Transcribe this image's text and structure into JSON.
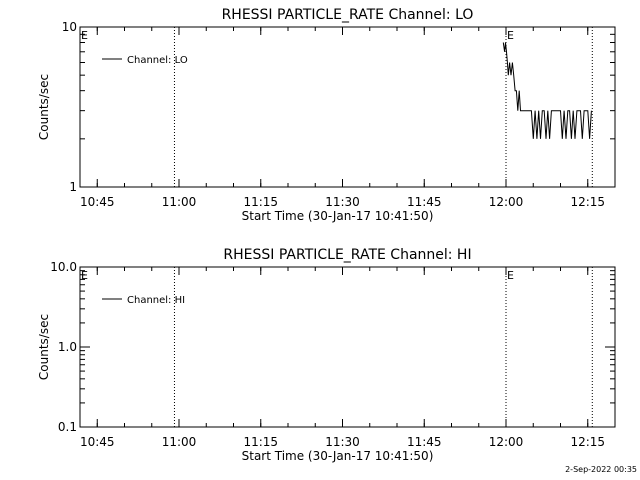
{
  "footer": {
    "timestamp": "2-Sep-2022 00:35"
  },
  "chart_data": [
    {
      "type": "line",
      "title": "RHESSI PARTICLE_RATE Channel: LO",
      "xlabel": "Start Time (30-Jan-17 10:41:50)",
      "ylabel": "Counts/sec",
      "yscale": "log",
      "ylim": [
        1,
        10
      ],
      "xlim": [
        "10:41:50",
        "12:20:00"
      ],
      "x_ticks": [
        "10:45",
        "11:00",
        "11:15",
        "11:30",
        "11:45",
        "12:00",
        "12:15"
      ],
      "y_ticks": [
        "1",
        "10"
      ],
      "legend": {
        "position": "top-left",
        "entries": [
          "Channel: LO"
        ]
      },
      "event_markers": [
        {
          "time": "10:41:50",
          "label": "E",
          "line": false
        },
        {
          "time": "10:59:10",
          "label": "",
          "line": true
        },
        {
          "time": "12:00:00",
          "label": "E",
          "line": true
        },
        {
          "time": "12:15:50",
          "label": "",
          "line": true
        }
      ],
      "series": [
        {
          "name": "Channel: LO",
          "x": [
            "11:59:30",
            "11:59:45",
            "11:59:55",
            "12:00:05",
            "12:00:15",
            "12:00:25",
            "12:00:40",
            "12:00:55",
            "12:01:10",
            "12:01:25",
            "12:01:40",
            "12:01:55",
            "12:02:10",
            "12:02:25",
            "12:02:40",
            "12:03:00",
            "12:03:20",
            "12:03:40",
            "12:04:00",
            "12:04:20",
            "12:04:40",
            "12:05:00",
            "12:05:20",
            "12:05:40",
            "12:06:00",
            "12:06:20",
            "12:06:40",
            "12:07:00",
            "12:07:20",
            "12:07:40",
            "12:08:00",
            "12:08:20",
            "12:08:40",
            "12:09:00",
            "12:09:20",
            "12:09:40",
            "12:10:00",
            "12:10:20",
            "12:10:40",
            "12:11:00",
            "12:11:20",
            "12:11:40",
            "12:12:00",
            "12:12:20",
            "12:12:40",
            "12:13:00",
            "12:13:20",
            "12:13:40",
            "12:14:00",
            "12:14:20",
            "12:14:40",
            "12:15:00",
            "12:15:20",
            "12:15:40"
          ],
          "values": [
            8,
            7,
            8,
            7,
            6,
            5,
            6,
            5,
            6,
            5,
            4,
            4,
            3,
            4,
            3,
            3,
            3,
            3,
            3,
            3,
            3,
            2,
            3,
            2,
            3,
            2,
            3,
            3,
            2,
            3,
            2,
            3,
            3,
            3,
            3,
            3,
            3,
            2,
            3,
            2,
            3,
            3,
            2,
            3,
            2,
            3,
            3,
            3,
            2,
            3,
            3,
            3,
            2,
            3
          ]
        }
      ]
    },
    {
      "type": "line",
      "title": "RHESSI PARTICLE_RATE Channel: HI",
      "xlabel": "Start Time (30-Jan-17 10:41:50)",
      "ylabel": "Counts/sec",
      "yscale": "log",
      "ylim": [
        0.1,
        10
      ],
      "xlim": [
        "10:41:50",
        "12:20:00"
      ],
      "x_ticks": [
        "10:45",
        "11:00",
        "11:15",
        "11:30",
        "11:45",
        "12:00",
        "12:15"
      ],
      "y_ticks": [
        "0.1",
        "1.0",
        "10.0"
      ],
      "legend": {
        "position": "top-left",
        "entries": [
          "Channel: HI"
        ]
      },
      "event_markers": [
        {
          "time": "10:41:50",
          "label": "E",
          "line": false
        },
        {
          "time": "10:59:10",
          "label": "",
          "line": true
        },
        {
          "time": "12:00:00",
          "label": "E",
          "line": true
        },
        {
          "time": "12:15:50",
          "label": "",
          "line": true
        }
      ],
      "series": [
        {
          "name": "Channel: HI",
          "x": [],
          "values": []
        }
      ]
    }
  ]
}
